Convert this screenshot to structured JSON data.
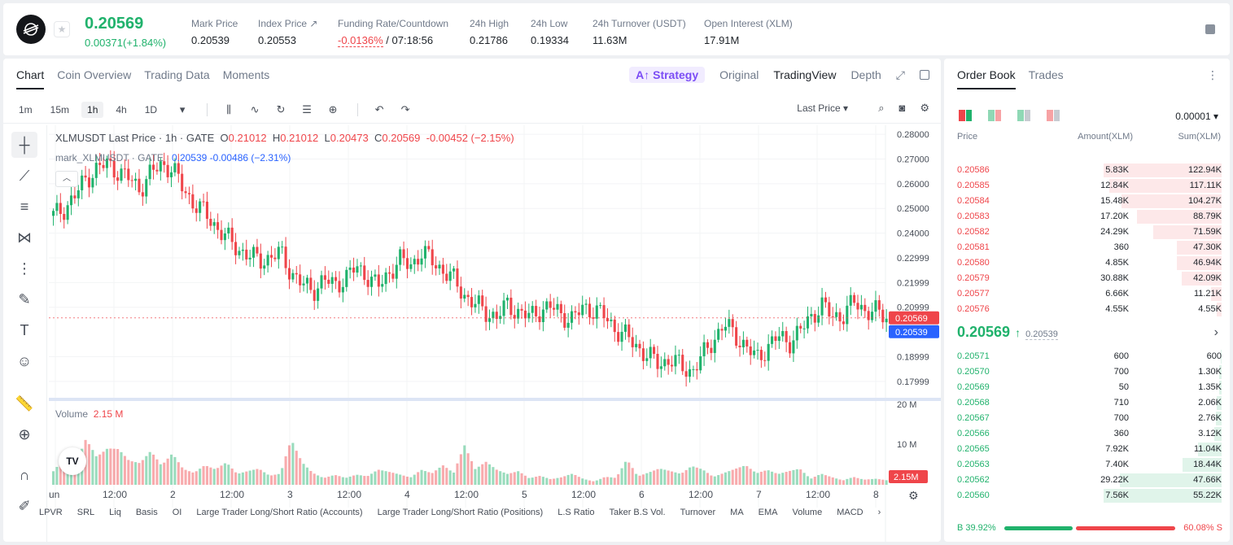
{
  "header": {
    "last_price": "0.20569",
    "change": "0.00371(+1.84%)",
    "stats": [
      {
        "label": "Mark Price",
        "value": "0.20539"
      },
      {
        "label": "Index Price ↗",
        "value": "0.20553"
      },
      {
        "label": "Funding Rate/Countdown",
        "value_rate": "-0.0136%",
        "value_countdown": "/ 07:18:56"
      },
      {
        "label": "24h High",
        "value": "0.21786"
      },
      {
        "label": "24h Low",
        "value": "0.19334"
      },
      {
        "label": "24h Turnover (USDT)",
        "value": "11.63M"
      },
      {
        "label": "Open Interest (XLM)",
        "value": "17.91M"
      }
    ]
  },
  "chart_tabs": [
    "Chart",
    "Coin Overview",
    "Trading Data",
    "Moments"
  ],
  "chart_tabs_right": {
    "strategy": "Strategy",
    "original": "Original",
    "tradingview": "TradingView",
    "depth": "Depth"
  },
  "timeframes": [
    "1m",
    "15m",
    "1h",
    "4h",
    "1D"
  ],
  "price_type": "Last Price",
  "legend": {
    "symbol": "XLMUSDT Last Price · 1h · GATE",
    "o_label": "O",
    "o": "0.21012",
    "h_label": "H",
    "h": "0.21012",
    "l_label": "L",
    "l": "0.20473",
    "c_label": "C",
    "c": "0.20569",
    "chg": "-0.00452 (−2.15%)",
    "mark_symbol": "mark_XLMUSDT · GATE",
    "mark_val": "0.20539",
    "mark_chg": "-0.00486 (−2.31%)"
  },
  "volume": {
    "label": "Volume",
    "value": "2.15 M"
  },
  "indicators": [
    "LPVR",
    "SRL",
    "Liq",
    "Basis",
    "OI",
    "Large Trader Long/Short Ratio (Accounts)",
    "Large Trader Long/Short Ratio (Positions)",
    "L.S Ratio",
    "Taker B.S Vol.",
    "Turnover",
    "MA",
    "EMA",
    "Volume",
    "MACD"
  ],
  "chart_data": {
    "type": "candlestick",
    "price_axis_ticks": [
      "0.28000",
      "0.27000",
      "0.26000",
      "0.25000",
      "0.24000",
      "0.22999",
      "0.21999",
      "0.20999",
      "0.18999",
      "0.17999"
    ],
    "volume_axis_ticks": [
      "20 M",
      "10 M"
    ],
    "price_axis_extra": "0.20999",
    "time_axis_ticks": [
      "Jun",
      "12:00",
      "2",
      "12:00",
      "3",
      "12:00",
      "4",
      "12:00",
      "5",
      "12:00",
      "6",
      "12:00",
      "7",
      "12:00",
      "8"
    ],
    "last_price_tag": "0.20569",
    "mark_price_tag": "0.20539",
    "volume_tag": "2.15M",
    "ylim": [
      0.175,
      0.283
    ],
    "close_path": [
      0.247,
      0.25,
      0.255,
      0.262,
      0.266,
      0.268,
      0.265,
      0.262,
      0.258,
      0.264,
      0.268,
      0.266,
      0.258,
      0.252,
      0.248,
      0.243,
      0.238,
      0.234,
      0.231,
      0.229,
      0.23,
      0.232,
      0.224,
      0.219,
      0.217,
      0.221,
      0.219,
      0.222,
      0.226,
      0.223,
      0.218,
      0.224,
      0.229,
      0.227,
      0.232,
      0.229,
      0.225,
      0.221,
      0.215,
      0.211,
      0.208,
      0.206,
      0.211,
      0.208,
      0.206,
      0.209,
      0.21,
      0.207,
      0.205,
      0.21,
      0.209,
      0.206,
      0.201,
      0.198,
      0.194,
      0.19,
      0.187,
      0.189,
      0.186,
      0.184,
      0.19,
      0.197,
      0.203,
      0.199,
      0.194,
      0.189,
      0.194,
      0.198,
      0.196,
      0.2,
      0.206,
      0.211,
      0.206,
      0.207,
      0.212,
      0.209,
      0.208,
      0.206
    ],
    "volume_path": [
      8,
      14,
      9,
      18,
      10,
      12,
      11,
      7,
      6,
      9,
      5,
      8,
      4,
      3,
      5,
      4,
      6,
      3,
      4,
      5,
      3,
      4,
      18,
      10,
      6,
      4,
      5,
      3,
      4,
      3,
      5,
      4,
      3,
      2,
      4,
      3,
      5,
      3,
      10,
      4,
      6,
      4,
      3,
      4,
      2,
      3,
      2,
      3,
      5,
      3,
      2,
      4,
      3,
      10,
      3,
      4,
      5,
      4,
      3,
      5,
      4,
      2,
      3,
      4,
      5,
      3,
      4,
      3,
      4,
      5,
      2,
      4,
      3,
      2,
      4,
      3,
      3,
      2
    ]
  },
  "orderbook": {
    "tabs": [
      "Order Book",
      "Trades"
    ],
    "precision": "0.00001",
    "headers": {
      "price": "Price",
      "amount": "Amount(XLM)",
      "sum": "Sum(XLM)"
    },
    "asks": [
      {
        "p": "0.20586",
        "a": "5.83K",
        "s": "122.94K",
        "d": 1.0
      },
      {
        "p": "0.20585",
        "a": "12.84K",
        "s": "117.11K",
        "d": 0.95
      },
      {
        "p": "0.20584",
        "a": "15.48K",
        "s": "104.27K",
        "d": 0.85
      },
      {
        "p": "0.20583",
        "a": "17.20K",
        "s": "88.79K",
        "d": 0.72
      },
      {
        "p": "0.20582",
        "a": "24.29K",
        "s": "71.59K",
        "d": 0.58
      },
      {
        "p": "0.20581",
        "a": "360",
        "s": "47.30K",
        "d": 0.38
      },
      {
        "p": "0.20580",
        "a": "4.85K",
        "s": "46.94K",
        "d": 0.38
      },
      {
        "p": "0.20579",
        "a": "30.88K",
        "s": "42.09K",
        "d": 0.34
      },
      {
        "p": "0.20577",
        "a": "6.66K",
        "s": "11.21K",
        "d": 0.09
      },
      {
        "p": "0.20576",
        "a": "4.55K",
        "s": "4.55K",
        "d": 0.04
      }
    ],
    "mid_price": "0.20569",
    "mid_mark": "0.20539",
    "bids": [
      {
        "p": "0.20571",
        "a": "600",
        "s": "600",
        "d": 0.01
      },
      {
        "p": "0.20570",
        "a": "700",
        "s": "1.30K",
        "d": 0.02
      },
      {
        "p": "0.20569",
        "a": "50",
        "s": "1.35K",
        "d": 0.02
      },
      {
        "p": "0.20568",
        "a": "710",
        "s": "2.06K",
        "d": 0.04
      },
      {
        "p": "0.20567",
        "a": "700",
        "s": "2.76K",
        "d": 0.05
      },
      {
        "p": "0.20566",
        "a": "360",
        "s": "3.12K",
        "d": 0.06
      },
      {
        "p": "0.20565",
        "a": "7.92K",
        "s": "11.04K",
        "d": 0.2
      },
      {
        "p": "0.20563",
        "a": "7.40K",
        "s": "18.44K",
        "d": 0.33
      },
      {
        "p": "0.20562",
        "a": "29.22K",
        "s": "47.66K",
        "d": 0.86
      },
      {
        "p": "0.20560",
        "a": "7.56K",
        "s": "55.22K",
        "d": 1.0
      }
    ],
    "buy_ratio_label": "B 39.92%",
    "sell_ratio_label": "60.08% S",
    "buy_ratio": 0.3992
  },
  "colors": {
    "up": "#20b26c",
    "down": "#ef454a",
    "mark": "#2962ff"
  }
}
